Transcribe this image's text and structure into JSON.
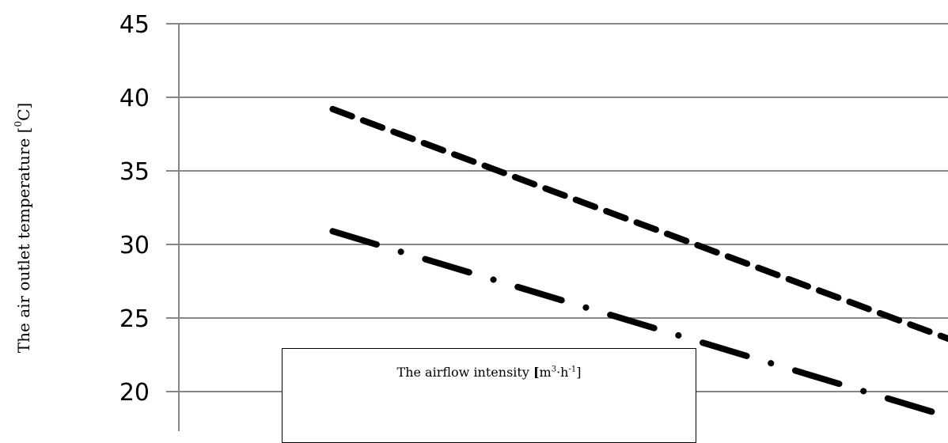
{
  "chart_data": {
    "type": "line",
    "ylabel_parts": [
      "The air outlet temperature [",
      "0",
      "C]"
    ],
    "xlabel_parts": [
      "The airflow intensity ",
      "[",
      "m",
      "3",
      "·h",
      "-1",
      "]"
    ],
    "ylim": [
      20,
      45
    ],
    "yticks": [
      20,
      25,
      30,
      35,
      40,
      45
    ],
    "y_tick_labels": [
      "20",
      "25",
      "30",
      "35",
      "40",
      "45"
    ],
    "grid": true,
    "xlim": [
      0,
      100
    ],
    "series": [
      {
        "style": "dashed",
        "color": "#000000",
        "x": [
          20,
          100
        ],
        "y": [
          39.2,
          23.6
        ]
      },
      {
        "style": "dash-dot",
        "color": "#000000",
        "x": [
          20,
          100
        ],
        "y": [
          30.9,
          18.3
        ]
      }
    ]
  }
}
